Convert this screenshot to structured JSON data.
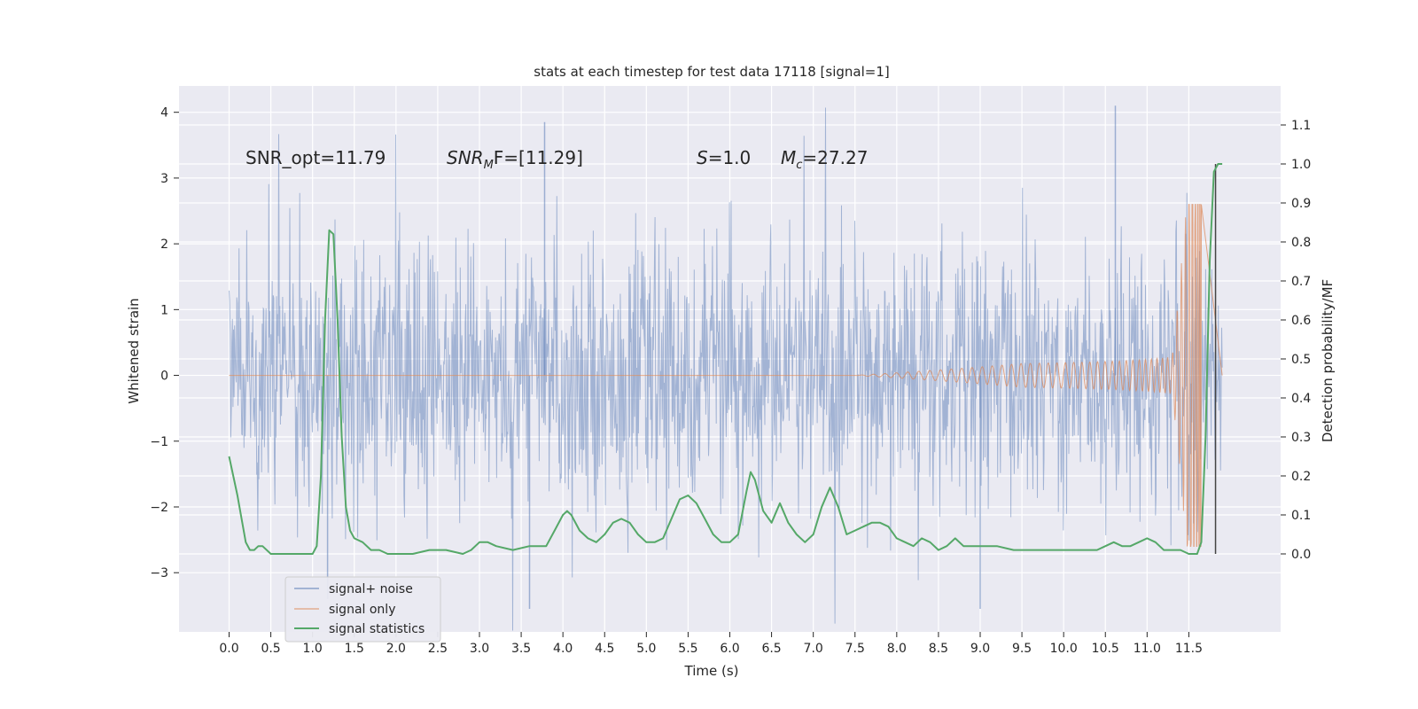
{
  "chart_data": {
    "type": "line",
    "title": "stats at each timestep for test data 17118 [signal=1]",
    "xlabel": "Time (s)",
    "ylabel_left": "Whitened strain",
    "ylabel_right": "Detection probability/MF",
    "x_range": [
      0,
      11.9
    ],
    "xlim": [
      -0.6,
      12.6
    ],
    "ylim_left": [
      -3.9,
      4.4
    ],
    "ylim_right": [
      -0.2,
      1.2
    ],
    "x_ticks": [
      "0.0",
      "0.5",
      "1.0",
      "1.5",
      "2.0",
      "2.5",
      "3.0",
      "3.5",
      "4.0",
      "4.5",
      "5.0",
      "5.5",
      "6.0",
      "6.5",
      "7.0",
      "7.5",
      "8.0",
      "8.5",
      "9.0",
      "9.5",
      "10.0",
      "10.5",
      "11.0",
      "11.5"
    ],
    "y_ticks_left": [
      "−3",
      "−2",
      "−1",
      "0",
      "1",
      "2",
      "3",
      "4"
    ],
    "y_ticks_right": [
      "0.0",
      "0.1",
      "0.2",
      "0.3",
      "0.4",
      "0.5",
      "0.6",
      "0.7",
      "0.8",
      "0.9",
      "1.0",
      "1.1"
    ],
    "annotations": {
      "snr_opt": "SNR_opt=11.79",
      "snr_mf_sym": "SNR",
      "snr_mf_sub": "M",
      "snr_mf_rest": "F=[11.29]",
      "s_sym": "S",
      "s_rest": "=1.0",
      "mc_sym": "M",
      "mc_sub": "c",
      "mc_rest": "=27.27"
    },
    "detection_marker_time": 11.82,
    "series": [
      {
        "name": "signal+ noise",
        "color": "#4c72b0",
        "axis": "left",
        "envelope_approx": [
          -2.0,
          2.2
        ],
        "peaks": [
          [
            3.78,
            3.85
          ],
          [
            10.62,
            4.1
          ],
          [
            1.18,
            -3.4
          ],
          [
            9.0,
            -3.55
          ],
          [
            3.6,
            -3.55
          ]
        ]
      },
      {
        "name": "signal only",
        "color": "#dd8452",
        "axis": "left",
        "description_values": {
          "chirp_start": 7.5,
          "peak_time": 11.62,
          "peak_amplitude": 2.6
        }
      },
      {
        "name": "signal statistics",
        "color": "#55a868",
        "axis": "right",
        "x": [
          0.0,
          0.05,
          0.1,
          0.15,
          0.2,
          0.25,
          0.3,
          0.35,
          0.4,
          0.5,
          0.6,
          0.7,
          0.8,
          0.9,
          1.0,
          1.05,
          1.1,
          1.15,
          1.2,
          1.25,
          1.3,
          1.35,
          1.4,
          1.45,
          1.5,
          1.6,
          1.7,
          1.8,
          1.9,
          2.0,
          2.2,
          2.4,
          2.6,
          2.8,
          2.9,
          3.0,
          3.1,
          3.2,
          3.4,
          3.6,
          3.8,
          3.9,
          4.0,
          4.05,
          4.1,
          4.2,
          4.3,
          4.4,
          4.5,
          4.6,
          4.7,
          4.8,
          4.9,
          5.0,
          5.1,
          5.2,
          5.3,
          5.4,
          5.5,
          5.6,
          5.7,
          5.8,
          5.9,
          6.0,
          6.1,
          6.2,
          6.25,
          6.3,
          6.4,
          6.5,
          6.6,
          6.7,
          6.8,
          6.9,
          7.0,
          7.1,
          7.2,
          7.3,
          7.4,
          7.5,
          7.6,
          7.7,
          7.8,
          7.9,
          8.0,
          8.1,
          8.2,
          8.3,
          8.4,
          8.5,
          8.6,
          8.7,
          8.8,
          8.9,
          9.0,
          9.2,
          9.4,
          9.6,
          9.8,
          10.0,
          10.2,
          10.4,
          10.5,
          10.6,
          10.7,
          10.8,
          10.9,
          11.0,
          11.1,
          11.2,
          11.3,
          11.4,
          11.5,
          11.6,
          11.65,
          11.7,
          11.75,
          11.8,
          11.85,
          11.9
        ],
        "y": [
          0.25,
          0.2,
          0.15,
          0.09,
          0.03,
          0.01,
          0.01,
          0.02,
          0.02,
          0.0,
          0.0,
          0.0,
          0.0,
          0.0,
          0.0,
          0.02,
          0.2,
          0.6,
          0.83,
          0.82,
          0.6,
          0.3,
          0.12,
          0.06,
          0.04,
          0.03,
          0.01,
          0.01,
          0.0,
          0.0,
          0.0,
          0.01,
          0.01,
          0.0,
          0.01,
          0.03,
          0.03,
          0.02,
          0.01,
          0.02,
          0.02,
          0.06,
          0.1,
          0.11,
          0.1,
          0.06,
          0.04,
          0.03,
          0.05,
          0.08,
          0.09,
          0.08,
          0.05,
          0.03,
          0.03,
          0.04,
          0.09,
          0.14,
          0.15,
          0.13,
          0.09,
          0.05,
          0.03,
          0.03,
          0.05,
          0.16,
          0.21,
          0.19,
          0.11,
          0.08,
          0.13,
          0.08,
          0.05,
          0.03,
          0.05,
          0.12,
          0.17,
          0.12,
          0.05,
          0.06,
          0.07,
          0.08,
          0.08,
          0.07,
          0.04,
          0.03,
          0.02,
          0.04,
          0.03,
          0.01,
          0.02,
          0.04,
          0.02,
          0.02,
          0.02,
          0.02,
          0.01,
          0.01,
          0.01,
          0.01,
          0.01,
          0.01,
          0.02,
          0.03,
          0.02,
          0.02,
          0.03,
          0.04,
          0.03,
          0.01,
          0.01,
          0.01,
          0.0,
          0.0,
          0.03,
          0.3,
          0.75,
          0.98,
          1.0,
          1.0
        ]
      }
    ],
    "legend": [
      "signal+ noise",
      "signal only",
      "signal statistics"
    ],
    "legend_location": "lower-left",
    "grid": true
  },
  "colors": {
    "background": "#eaeaf2",
    "grid": "#ffffff",
    "noise": "#4c72b0",
    "signal": "#dd8452",
    "stats": "#55a868",
    "marker": "#444444"
  }
}
